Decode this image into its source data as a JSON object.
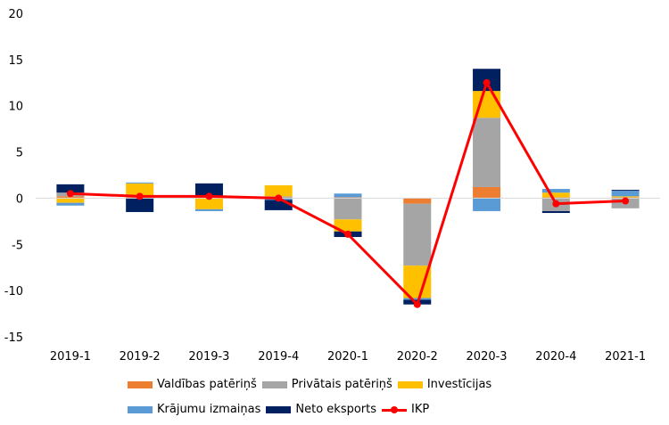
{
  "chart_data": {
    "type": "bar",
    "stacked": true,
    "title": "",
    "xlabel": "",
    "ylabel": "",
    "ylim": [
      -15,
      20
    ],
    "yticks": [
      -15,
      -10,
      -5,
      0,
      5,
      10,
      15,
      20
    ],
    "grid": false,
    "legend_position": "bottom",
    "categories": [
      "2019-1",
      "2019-2",
      "2019-3",
      "2019-4",
      "2020-1",
      "2020-2",
      "2020-3",
      "2020-4",
      "2021-1"
    ],
    "series": [
      {
        "name": "Valdības patēriņš",
        "kind": "bar",
        "color": "#ED7D31",
        "values": [
          0.2,
          0.1,
          0.1,
          0.1,
          0.1,
          -0.6,
          1.2,
          0.1,
          0.1
        ]
      },
      {
        "name": "Privātais patēriņš",
        "kind": "bar",
        "color": "#A5A5A5",
        "values": [
          0.4,
          0.1,
          0.1,
          0.1,
          -2.3,
          -6.7,
          7.5,
          -1.4,
          -1.1
        ]
      },
      {
        "name": "Investīcijas",
        "kind": "bar",
        "color": "#FFC000",
        "values": [
          -0.5,
          1.4,
          -1.2,
          1.2,
          -1.3,
          -3.5,
          2.9,
          0.5,
          0.1
        ]
      },
      {
        "name": "Krājumu izmaiņas",
        "kind": "bar",
        "color": "#5B9BD5",
        "values": [
          -0.3,
          0.1,
          -0.2,
          -0.2,
          0.4,
          -0.2,
          -1.4,
          0.4,
          0.6
        ]
      },
      {
        "name": "Neto eksports",
        "kind": "bar",
        "color": "#002060",
        "values": [
          0.9,
          -1.5,
          1.4,
          -1.1,
          -0.6,
          -0.5,
          2.4,
          -0.2,
          0.1
        ]
      },
      {
        "name": "IKP",
        "kind": "line",
        "color": "#FF0000",
        "values": [
          0.5,
          0.2,
          0.2,
          0.0,
          -3.9,
          -11.5,
          12.5,
          -0.6,
          -0.3
        ]
      }
    ]
  }
}
